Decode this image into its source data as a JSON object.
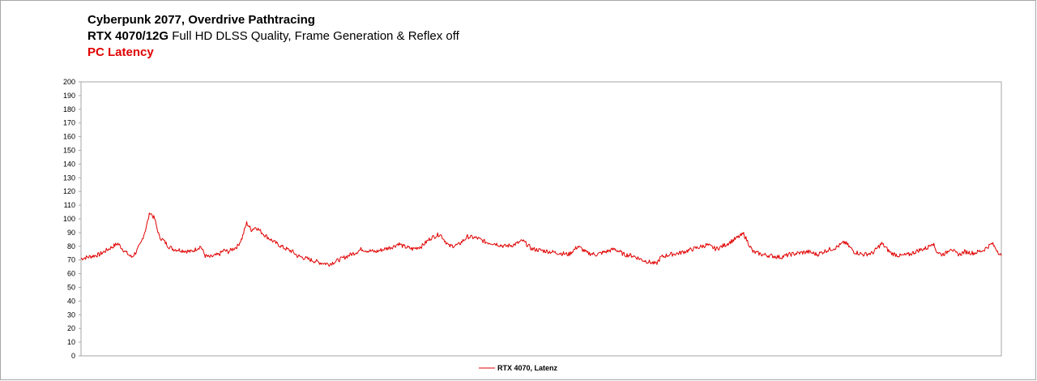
{
  "header": {
    "title": "Cyberpunk 2077, Overdrive Pathtracing",
    "subtitle_bold": "RTX 4070/12G",
    "subtitle_rest": "Full HD DLSS Quality, Frame Generation & Reflex off",
    "metric": "PC Latency"
  },
  "colors": {
    "series": "#e00000",
    "metric": "#e00000",
    "grid": "#d9d9d9"
  },
  "chart_data": {
    "type": "line",
    "title": "Cyberpunk 2077, Overdrive Pathtracing",
    "subtitle": "RTX 4070/12G Full HD DLSS Quality, Frame Generation & Reflex off",
    "ylabel": "",
    "xlabel": "",
    "ylim": [
      0,
      200
    ],
    "yticks": [
      "200",
      "190",
      "180",
      "170",
      "160",
      "150",
      "140",
      "130",
      "120",
      "110",
      "100",
      "90",
      "80",
      "70",
      "60",
      "50",
      "40",
      "30",
      "20",
      "10",
      "0"
    ],
    "grid": "horizontal-off",
    "legend_position": "bottom",
    "series": [
      {
        "name": "RTX 4070, Latenz",
        "note_x": "sample index 0-1000 (no x tick labels shown)",
        "x": [
          0,
          20,
          30,
          40,
          48,
          55,
          60,
          65,
          70,
          75,
          80,
          85,
          90,
          95,
          100,
          110,
          120,
          125,
          130,
          135,
          140,
          150,
          155,
          160,
          165,
          170,
          175,
          180,
          185,
          190,
          200,
          210,
          220,
          230,
          235,
          240,
          245,
          250,
          255,
          260,
          270,
          280,
          290,
          300,
          305,
          310,
          320,
          330,
          340,
          345,
          350,
          355,
          360,
          370,
          380,
          390,
          400,
          410,
          415,
          420,
          430,
          440,
          450,
          460,
          470,
          480,
          490,
          500,
          510,
          520,
          530,
          540,
          550,
          560,
          570,
          580,
          590,
          600,
          610,
          620,
          625,
          630,
          640,
          650,
          660,
          670,
          680,
          690,
          700,
          710,
          720,
          730,
          740,
          750,
          760,
          770,
          780,
          790,
          800,
          810,
          820,
          830,
          840,
          850,
          860,
          870,
          880,
          890,
          900,
          910,
          920,
          925,
          930,
          935,
          940,
          945,
          950,
          955,
          960,
          970,
          980,
          990,
          1000
        ],
        "values": [
          71,
          74,
          78,
          82,
          76,
          72,
          76,
          82,
          92,
          105,
          100,
          87,
          84,
          80,
          78,
          77,
          76,
          78,
          80,
          73,
          72,
          74,
          77,
          76,
          78,
          80,
          86,
          97,
          92,
          94,
          88,
          83,
          79,
          76,
          73,
          72,
          71,
          70,
          69,
          68,
          67,
          70,
          73,
          76,
          78,
          77,
          76,
          78,
          80,
          82,
          80,
          79,
          78,
          80,
          86,
          89,
          80,
          81,
          84,
          87,
          86,
          83,
          82,
          80,
          81,
          84,
          78,
          77,
          76,
          75,
          74,
          80,
          75,
          74,
          76,
          78,
          74,
          73,
          70,
          68,
          67,
          72,
          74,
          75,
          77,
          79,
          81,
          78,
          81,
          85,
          89,
          76,
          74,
          73,
          72,
          74,
          75,
          76,
          74,
          77,
          79,
          83,
          76,
          74,
          75,
          82,
          75,
          73,
          74,
          77,
          79,
          83,
          76,
          74,
          75,
          79,
          75,
          74,
          76,
          75,
          77,
          82,
          73
        ]
      }
    ]
  },
  "legend": {
    "label": "RTX 4070, Latenz"
  }
}
